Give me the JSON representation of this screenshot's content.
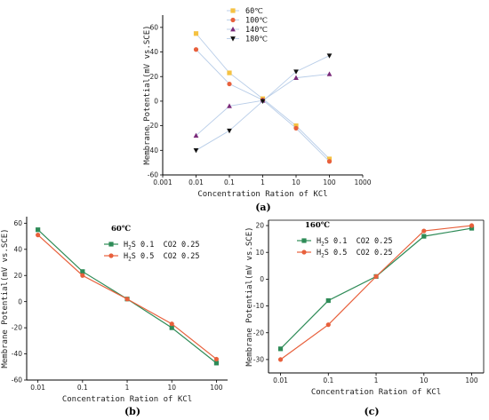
{
  "colors": {
    "s60": "#f5c242",
    "s100": "#e8603c",
    "s140": "#7a2a7a",
    "s180": "#111111",
    "link_a": "#b8cde8",
    "green": "#2e8b57",
    "orange": "#e8603c",
    "axis": "#000000"
  },
  "chart_data": [
    {
      "id": "a",
      "panel_label": "(a)",
      "type": "line",
      "scale_x": "log",
      "xlim": [
        0.001,
        1000
      ],
      "ylim": [
        -60,
        70
      ],
      "xticks": [
        0.001,
        0.01,
        0.1,
        1,
        10,
        100,
        1000
      ],
      "xtick_labels": [
        "0.001",
        "0.01",
        "0.1",
        "1",
        "10",
        "100",
        "1000"
      ],
      "yticks": [
        -60,
        -40,
        -20,
        0,
        20,
        40,
        60
      ],
      "ytick_labels": [
        "-60",
        "-40",
        "-20",
        "0",
        "20",
        "40",
        "60"
      ],
      "xlabel": "Concentration Ration of KCl",
      "ylabel": "Membrane Potential(mV vs.SCE)",
      "x": [
        0.01,
        0.1,
        1,
        10,
        100
      ],
      "legend_position": "top-center",
      "series": [
        {
          "name": "60℃",
          "values": [
            55,
            23,
            2,
            -20,
            -47
          ],
          "marker": "square",
          "color_key": "s60"
        },
        {
          "name": "100℃",
          "values": [
            42,
            14,
            1,
            -22,
            -49
          ],
          "marker": "circle",
          "color_key": "s100"
        },
        {
          "name": "140℃",
          "values": [
            -28,
            -4,
            0.5,
            19,
            22
          ],
          "marker": "triangle-up",
          "color_key": "s140"
        },
        {
          "name": "180℃",
          "values": [
            -40,
            -24,
            0,
            24,
            37
          ],
          "marker": "triangle-down",
          "color_key": "s180"
        }
      ]
    },
    {
      "id": "b",
      "panel_label": "(b)",
      "note": "60℃",
      "type": "line",
      "scale_x": "log",
      "xlim": [
        0.0056,
        178
      ],
      "ylim": [
        -60,
        65
      ],
      "xticks": [
        0.01,
        0.1,
        1,
        10,
        100
      ],
      "xtick_labels": [
        "0.01",
        "0.1",
        "1",
        "10",
        "100"
      ],
      "yticks": [
        -60,
        -40,
        -20,
        0,
        20,
        40,
        60
      ],
      "ytick_labels": [
        "-60",
        "-40",
        "-20",
        "0",
        "20",
        "40",
        "60"
      ],
      "xlabel": "Concentration Ration of KCl",
      "ylabel": "Membrane Potential(mV vs.SCE)",
      "x": [
        0.01,
        0.1,
        1,
        10,
        100
      ],
      "legend_position": "top-center",
      "series": [
        {
          "name_main": "H",
          "name_sub": "2",
          "name_rest": "S 0.1  CO2 0.25",
          "values": [
            55,
            23,
            2,
            -20,
            -47
          ],
          "marker": "square",
          "color_key": "green"
        },
        {
          "name_main": "H",
          "name_sub": "2",
          "name_rest": "S 0.5  CO2 0.25",
          "values": [
            51,
            20,
            2,
            -17,
            -44
          ],
          "marker": "circle",
          "color_key": "orange"
        }
      ]
    },
    {
      "id": "c",
      "panel_label": "(c)",
      "note": "160℃",
      "type": "line",
      "scale_x": "log",
      "xlim": [
        0.0056,
        178
      ],
      "ylim": [
        -35,
        22
      ],
      "xticks": [
        0.01,
        0.1,
        1,
        10,
        100
      ],
      "xtick_labels": [
        "0.01",
        "0.1",
        "1",
        "10",
        "100"
      ],
      "yticks": [
        -30,
        -20,
        -10,
        0,
        10,
        20
      ],
      "ytick_labels": [
        "-30",
        "-20",
        "-10",
        "0",
        "10",
        "20"
      ],
      "xlabel": "Concentration Ration of KCl",
      "ylabel": "Membrane Potential(mV vs.SCE)",
      "x": [
        0.01,
        0.1,
        1,
        10,
        100
      ],
      "legend_position": "top-left",
      "series": [
        {
          "name_main": "H",
          "name_sub": "2",
          "name_rest": "S 0.1  CO2 0.25",
          "values": [
            -26,
            -8,
            1,
            16,
            19
          ],
          "marker": "square",
          "color_key": "green"
        },
        {
          "name_main": "H",
          "name_sub": "2",
          "name_rest": "S 0.5  CO2 0.25",
          "values": [
            -30,
            -17,
            1,
            18,
            20
          ],
          "marker": "circle",
          "color_key": "orange"
        }
      ]
    }
  ]
}
